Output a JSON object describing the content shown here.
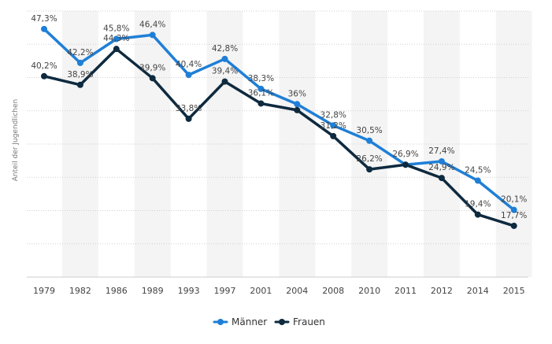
{
  "chart_data": {
    "type": "line",
    "title": "",
    "xlabel": "",
    "ylabel": "Anteil der Jugendlichen",
    "categories": [
      "1979",
      "1982",
      "1986",
      "1989",
      "1993",
      "1997",
      "2001",
      "2004",
      "2008",
      "2010",
      "2011",
      "2012",
      "2014",
      "2015"
    ],
    "ylim": [
      10,
      50
    ],
    "grid": true,
    "legend_position": "bottom",
    "series": [
      {
        "name": "Männer",
        "color": "#1f7fd6",
        "values": [
          47.3,
          42.2,
          45.8,
          46.4,
          40.4,
          42.8,
          38.3,
          36.0,
          32.8,
          30.5,
          26.9,
          27.4,
          24.5,
          20.1
        ],
        "labels": [
          "47,3%",
          "42,2%",
          "45,8%",
          "46,4%",
          "40,4%",
          "42,8%",
          "38,3%",
          "36%",
          "32,8%",
          "30,5%",
          "26,9%",
          "27,4%",
          "24,5%",
          "20,1%"
        ]
      },
      {
        "name": "Frauen",
        "color": "#0e2a3f",
        "values": [
          40.2,
          38.9,
          44.3,
          39.9,
          33.8,
          39.4,
          36.1,
          35.1,
          31.2,
          26.2,
          26.9,
          24.9,
          19.4,
          17.7
        ],
        "labels": [
          "40,2%",
          "38,9%",
          "44,3%",
          "39,9%",
          "33,8%",
          "39,4%",
          "36,1%",
          "",
          "31,2%",
          "26,2%",
          "",
          "24,9%",
          "19,4%",
          "17,7%"
        ]
      }
    ]
  }
}
